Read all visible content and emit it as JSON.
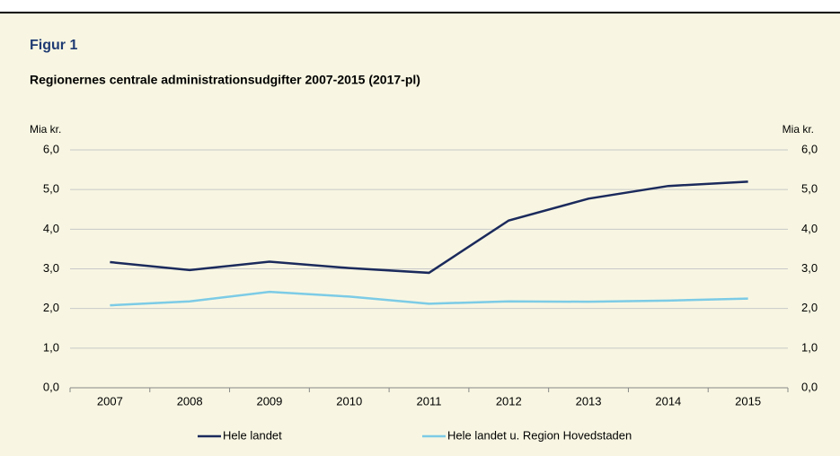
{
  "chart_data": {
    "type": "line",
    "title": "Figur 1",
    "subtitle": "Regionernes centrale administrationsudgifter 2007-2015 (2017-pl)",
    "y_label": "Mia kr.",
    "y2_label": "Mia kr.",
    "categories": [
      "2007",
      "2008",
      "2009",
      "2010",
      "2011",
      "2012",
      "2013",
      "2014",
      "2015"
    ],
    "series": [
      {
        "name": "Hele landet",
        "color": "#1b2a5c",
        "values": [
          3.17,
          2.97,
          3.18,
          3.02,
          2.9,
          4.22,
          4.77,
          5.09,
          5.2
        ]
      },
      {
        "name": "Hele landet u. Region Hovedstaden",
        "color": "#7ccbe6",
        "values": [
          2.08,
          2.18,
          2.42,
          2.3,
          2.12,
          2.18,
          2.17,
          2.2,
          2.25
        ]
      }
    ],
    "ylim": [
      0,
      6
    ],
    "yticks": [
      {
        "value": 0,
        "label": "0,0"
      },
      {
        "value": 1,
        "label": "1,0"
      },
      {
        "value": 2,
        "label": "2,0"
      },
      {
        "value": 3,
        "label": "3,0"
      },
      {
        "value": 4,
        "label": "4,0"
      },
      {
        "value": 5,
        "label": "5,0"
      },
      {
        "value": 6,
        "label": "6,0"
      }
    ],
    "y2lim": [
      0,
      6
    ],
    "y2ticks": [
      {
        "value": 0,
        "label": "0,0"
      },
      {
        "value": 1,
        "label": "1,0"
      },
      {
        "value": 2,
        "label": "2,0"
      },
      {
        "value": 3,
        "label": "3,0"
      },
      {
        "value": 4,
        "label": "4,0"
      },
      {
        "value": 5,
        "label": "5,0"
      },
      {
        "value": 6,
        "label": "6,0"
      }
    ],
    "grid": true,
    "legend": "bottom"
  }
}
